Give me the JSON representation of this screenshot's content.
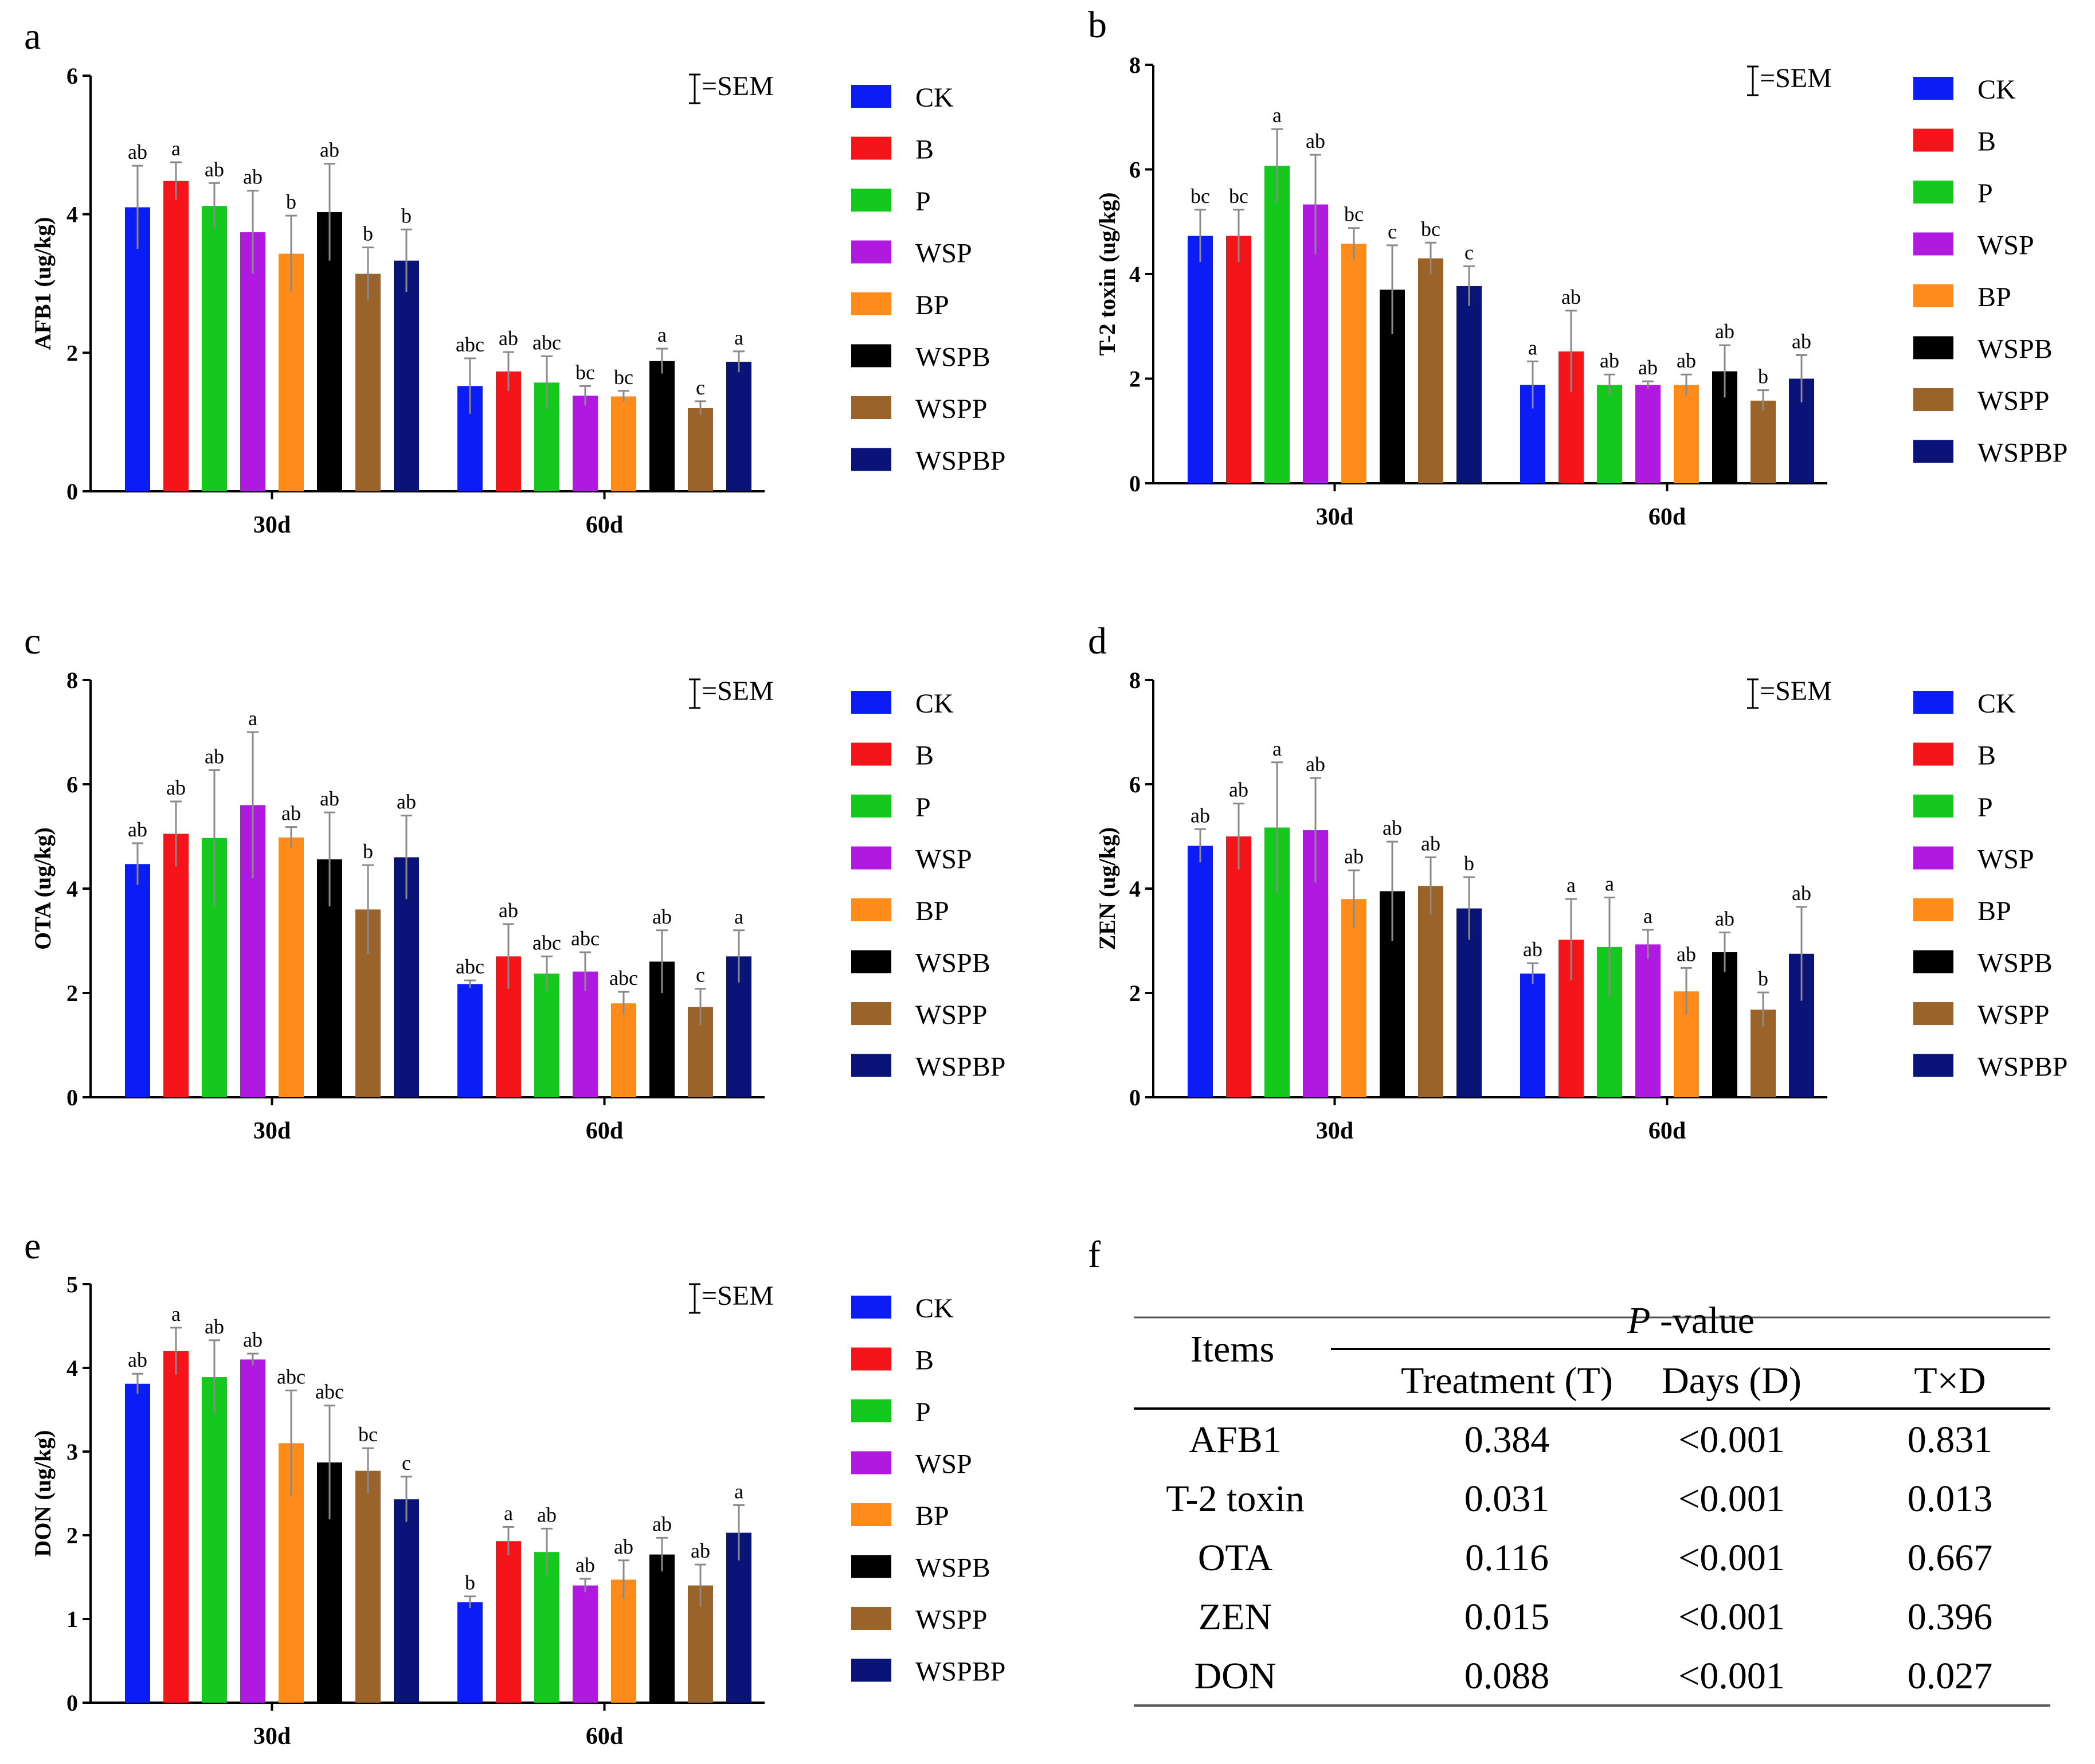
{
  "colors": {
    "CK": "#0b1cf5",
    "B": "#f5141a",
    "P": "#14c81e",
    "WSP": "#b019e0",
    "BP": "#ff8c1a",
    "WSPB": "#000000",
    "WSPP": "#99632a",
    "WSPBP": "#0a1478",
    "error": "#8a8a8a"
  },
  "legend": {
    "items": [
      "CK",
      "B",
      "P",
      "WSP",
      "BP",
      "WSPB",
      "WSPP",
      "WSPBP"
    ],
    "sem_label": "=SEM"
  },
  "chart_data": [
    {
      "type": "bar",
      "panel": "a",
      "ylabel": "AFB1 (ug/kg)",
      "ylim": [
        0,
        6
      ],
      "yticks": [
        "0",
        "2",
        "4",
        "6"
      ],
      "categories": [
        "30d",
        "60d"
      ],
      "series": [
        {
          "name": "CK",
          "values": [
            4.1,
            1.52
          ],
          "sem": [
            0.6,
            0.4
          ],
          "letters": [
            "ab",
            "abc"
          ]
        },
        {
          "name": "B",
          "values": [
            4.48,
            1.73
          ],
          "sem": [
            0.27,
            0.28
          ],
          "letters": [
            "a",
            "ab"
          ]
        },
        {
          "name": "P",
          "values": [
            4.12,
            1.57
          ],
          "sem": [
            0.33,
            0.38
          ],
          "letters": [
            "ab",
            "abc"
          ]
        },
        {
          "name": "WSP",
          "values": [
            3.74,
            1.38
          ],
          "sem": [
            0.6,
            0.14
          ],
          "letters": [
            "ab",
            "bc"
          ]
        },
        {
          "name": "BP",
          "values": [
            3.43,
            1.37
          ],
          "sem": [
            0.55,
            0.08
          ],
          "letters": [
            "b",
            "bc"
          ]
        },
        {
          "name": "WSPB",
          "values": [
            4.03,
            1.88
          ],
          "sem": [
            0.7,
            0.18
          ],
          "letters": [
            "ab",
            "a"
          ]
        },
        {
          "name": "WSPP",
          "values": [
            3.14,
            1.2
          ],
          "sem": [
            0.38,
            0.1
          ],
          "letters": [
            "b",
            "c"
          ]
        },
        {
          "name": "WSPBP",
          "values": [
            3.33,
            1.87
          ],
          "sem": [
            0.45,
            0.15
          ],
          "letters": [
            "b",
            "a"
          ]
        }
      ]
    },
    {
      "type": "bar",
      "panel": "b",
      "ylabel": "T-2 toxin (ug/kg)",
      "ylim": [
        0,
        8
      ],
      "yticks": [
        "0",
        "2",
        "4",
        "6",
        "8"
      ],
      "categories": [
        "30d",
        "60d"
      ],
      "series": [
        {
          "name": "CK",
          "values": [
            4.73,
            1.88
          ],
          "sem": [
            0.5,
            0.45
          ],
          "letters": [
            "bc",
            "a"
          ]
        },
        {
          "name": "B",
          "values": [
            4.73,
            2.52
          ],
          "sem": [
            0.5,
            0.78
          ],
          "letters": [
            "bc",
            "ab"
          ]
        },
        {
          "name": "P",
          "values": [
            6.07,
            1.88
          ],
          "sem": [
            0.7,
            0.2
          ],
          "letters": [
            "a",
            "ab"
          ]
        },
        {
          "name": "WSP",
          "values": [
            5.33,
            1.88
          ],
          "sem": [
            0.95,
            0.07
          ],
          "letters": [
            "ab",
            "ab"
          ]
        },
        {
          "name": "BP",
          "values": [
            4.58,
            1.88
          ],
          "sem": [
            0.3,
            0.2
          ],
          "letters": [
            "bc",
            "ab"
          ]
        },
        {
          "name": "WSPB",
          "values": [
            3.7,
            2.14
          ],
          "sem": [
            0.85,
            0.5
          ],
          "letters": [
            "c",
            "ab"
          ]
        },
        {
          "name": "WSPP",
          "values": [
            4.3,
            1.58
          ],
          "sem": [
            0.3,
            0.2
          ],
          "letters": [
            "bc",
            "b"
          ]
        },
        {
          "name": "WSPBP",
          "values": [
            3.77,
            2.0
          ],
          "sem": [
            0.38,
            0.45
          ],
          "letters": [
            "c",
            "ab"
          ]
        }
      ]
    },
    {
      "type": "bar",
      "panel": "c",
      "ylabel": "OTA (ug/kg)",
      "ylim": [
        0,
        8
      ],
      "yticks": [
        "0",
        "2",
        "4",
        "6",
        "8"
      ],
      "categories": [
        "30d",
        "60d"
      ],
      "series": [
        {
          "name": "CK",
          "values": [
            4.47,
            2.17
          ],
          "sem": [
            0.4,
            0.07
          ],
          "letters": [
            "ab",
            "abc"
          ]
        },
        {
          "name": "B",
          "values": [
            5.05,
            2.7
          ],
          "sem": [
            0.62,
            0.62
          ],
          "letters": [
            "ab",
            "ab"
          ]
        },
        {
          "name": "P",
          "values": [
            4.97,
            2.37
          ],
          "sem": [
            1.3,
            0.33
          ],
          "letters": [
            "ab",
            "abc"
          ]
        },
        {
          "name": "WSP",
          "values": [
            5.6,
            2.41
          ],
          "sem": [
            1.4,
            0.37
          ],
          "letters": [
            "a",
            "abc"
          ]
        },
        {
          "name": "BP",
          "values": [
            4.98,
            1.8
          ],
          "sem": [
            0.2,
            0.22
          ],
          "letters": [
            "ab",
            "abc"
          ]
        },
        {
          "name": "WSPB",
          "values": [
            4.56,
            2.6
          ],
          "sem": [
            0.9,
            0.6
          ],
          "letters": [
            "ab",
            "ab"
          ]
        },
        {
          "name": "WSPP",
          "values": [
            3.6,
            1.73
          ],
          "sem": [
            0.85,
            0.35
          ],
          "letters": [
            "b",
            "c"
          ]
        },
        {
          "name": "WSPBP",
          "values": [
            4.6,
            2.7
          ],
          "sem": [
            0.8,
            0.5
          ],
          "letters": [
            "ab",
            "a"
          ]
        }
      ]
    },
    {
      "type": "bar",
      "panel": "d",
      "ylabel": "ZEN (ug/kg)",
      "ylim": [
        0,
        8
      ],
      "yticks": [
        "0",
        "2",
        "4",
        "6",
        "8"
      ],
      "categories": [
        "30d",
        "60d"
      ],
      "series": [
        {
          "name": "CK",
          "values": [
            4.82,
            2.37
          ],
          "sem": [
            0.32,
            0.2
          ],
          "letters": [
            "ab",
            "ab"
          ]
        },
        {
          "name": "B",
          "values": [
            5.0,
            3.02
          ],
          "sem": [
            0.63,
            0.78
          ],
          "letters": [
            "ab",
            "a"
          ]
        },
        {
          "name": "P",
          "values": [
            5.17,
            2.88
          ],
          "sem": [
            1.25,
            0.95
          ],
          "letters": [
            "a",
            "a"
          ]
        },
        {
          "name": "WSP",
          "values": [
            5.12,
            2.93
          ],
          "sem": [
            1.0,
            0.28
          ],
          "letters": [
            "ab",
            "a"
          ]
        },
        {
          "name": "BP",
          "values": [
            3.8,
            2.03
          ],
          "sem": [
            0.55,
            0.45
          ],
          "letters": [
            "ab",
            "ab"
          ]
        },
        {
          "name": "WSPB",
          "values": [
            3.95,
            2.78
          ],
          "sem": [
            0.95,
            0.38
          ],
          "letters": [
            "ab",
            "ab"
          ]
        },
        {
          "name": "WSPP",
          "values": [
            4.05,
            1.68
          ],
          "sem": [
            0.55,
            0.33
          ],
          "letters": [
            "ab",
            "b"
          ]
        },
        {
          "name": "WSPBP",
          "values": [
            3.62,
            2.75
          ],
          "sem": [
            0.6,
            0.9
          ],
          "letters": [
            "b",
            "ab"
          ]
        }
      ]
    },
    {
      "type": "bar",
      "panel": "e",
      "ylabel": "DON (ug/kg)",
      "ylim": [
        0,
        5
      ],
      "yticks": [
        "0",
        "1",
        "2",
        "3",
        "4",
        "5"
      ],
      "categories": [
        "30d",
        "60d"
      ],
      "series": [
        {
          "name": "CK",
          "values": [
            3.81,
            1.2
          ],
          "sem": [
            0.12,
            0.07
          ],
          "letters": [
            "ab",
            "b"
          ]
        },
        {
          "name": "B",
          "values": [
            4.2,
            1.93
          ],
          "sem": [
            0.28,
            0.17
          ],
          "letters": [
            "a",
            "a"
          ]
        },
        {
          "name": "P",
          "values": [
            3.89,
            1.8
          ],
          "sem": [
            0.44,
            0.28
          ],
          "letters": [
            "ab",
            "ab"
          ]
        },
        {
          "name": "WSP",
          "values": [
            4.1,
            1.4
          ],
          "sem": [
            0.07,
            0.08
          ],
          "letters": [
            "ab",
            "ab"
          ]
        },
        {
          "name": "BP",
          "values": [
            3.1,
            1.47
          ],
          "sem": [
            0.63,
            0.23
          ],
          "letters": [
            "abc",
            "ab"
          ]
        },
        {
          "name": "WSPB",
          "values": [
            2.87,
            1.77
          ],
          "sem": [
            0.68,
            0.2
          ],
          "letters": [
            "abc",
            "ab"
          ]
        },
        {
          "name": "WSPP",
          "values": [
            2.77,
            1.4
          ],
          "sem": [
            0.27,
            0.25
          ],
          "letters": [
            "bc",
            "ab"
          ]
        },
        {
          "name": "WSPBP",
          "values": [
            2.43,
            2.03
          ],
          "sem": [
            0.27,
            0.33
          ],
          "letters": [
            "c",
            "a"
          ]
        }
      ]
    }
  ],
  "table": {
    "panel": "f",
    "items_header": "Items",
    "pvalue_italic": "P",
    "pvalue_rest": " -value",
    "columns": [
      "Treatment (T)",
      "Days (D)",
      "T×D"
    ],
    "rows": [
      {
        "item": "AFB1",
        "values": [
          "0.384",
          "<0.001",
          "0.831"
        ]
      },
      {
        "item": "T-2 toxin",
        "values": [
          "0.031",
          "<0.001",
          "0.013"
        ]
      },
      {
        "item": "OTA",
        "values": [
          "0.116",
          "<0.001",
          "0.667"
        ]
      },
      {
        "item": "ZEN",
        "values": [
          "0.015",
          "<0.001",
          "0.396"
        ]
      },
      {
        "item": "DON",
        "values": [
          "0.088",
          "<0.001",
          "0.027"
        ]
      }
    ]
  }
}
